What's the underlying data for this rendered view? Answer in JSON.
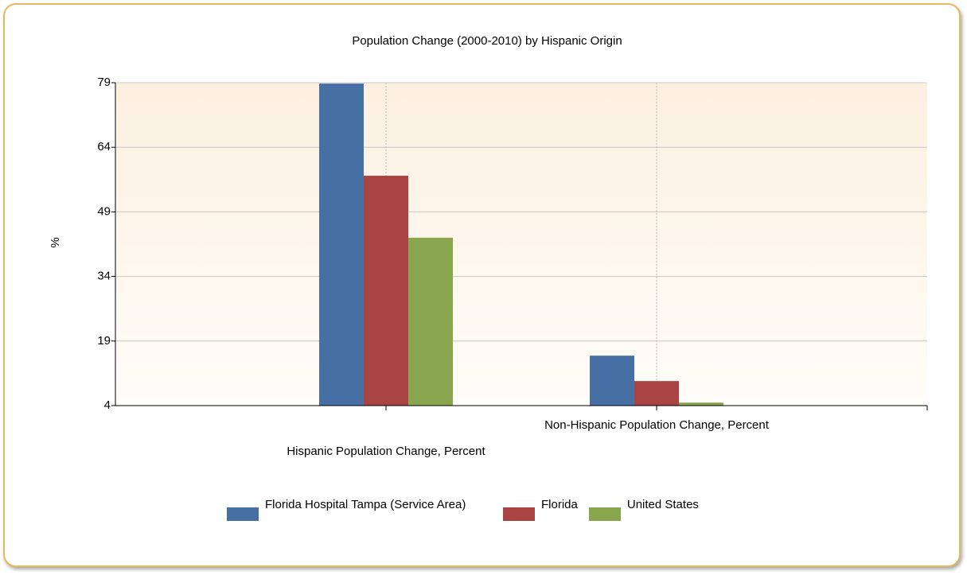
{
  "chart_data": {
    "type": "bar",
    "title": "Population Change (2000-2010) by Hispanic Origin",
    "y_label": "%",
    "categories": [
      "Hispanic Population Change, Percent",
      "Non-Hispanic Population Change, Percent"
    ],
    "series": [
      {
        "name": "Florida Hospital Tampa (Service Area)",
        "color": "#4670a4",
        "values": [
          78.8,
          15.6
        ]
      },
      {
        "name": "Florida",
        "color": "#aa4443",
        "values": [
          57.4,
          9.7
        ]
      },
      {
        "name": "United States",
        "color": "#89a54e",
        "values": [
          43.0,
          4.7
        ]
      }
    ],
    "ylim": [
      4,
      79
    ],
    "yticks": [
      4,
      19,
      34,
      49,
      64,
      79
    ],
    "grid": true
  }
}
